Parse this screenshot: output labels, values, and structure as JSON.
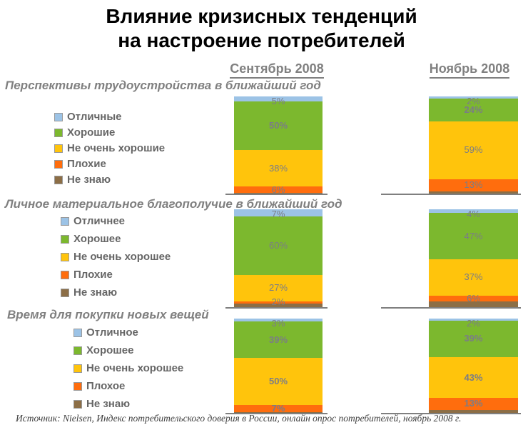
{
  "title": {
    "line1": "Влияние кризисных тенденций",
    "line2": "на настроение потребителей"
  },
  "source": "Источник: Nielsen, Индекс потребительского доверия в России, онлайн опрос потребителей, ноябрь 2008 г.",
  "colors": {
    "segments": [
      "#9CC3E6",
      "#7CB82E",
      "#FFC40C",
      "#FF6D0D",
      "#8C6E46"
    ],
    "header_gray": "#808080",
    "legend_text": "#666666",
    "percent_label": "#7B7D86",
    "axis": "#7F7F7F",
    "title_black": "#000000"
  },
  "chart_data": {
    "type": "bar",
    "subtype": "stacked-100-percent",
    "columns": [
      "Сентябрь 2008",
      "Ноябрь 2008"
    ],
    "legend_position": "left",
    "grid": false,
    "sections": [
      {
        "title": "Перспективы трудоустройства в ближайший год",
        "legend": [
          "Отличные",
          "Хорошие",
          "Не очень хорошие",
          "Плохие",
          "Не знаю"
        ],
        "bars": [
          {
            "column": "Сентябрь 2008",
            "values": [
              5,
              50,
              38,
              6,
              1
            ],
            "labels": [
              "5%",
              "50%",
              "38%",
              "6%",
              ""
            ],
            "bold": [
              false,
              true,
              false,
              false,
              false
            ]
          },
          {
            "column": "Ноябрь 2008",
            "values": [
              2,
              24,
              59,
              13,
              2
            ],
            "labels": [
              "2%",
              "24%",
              "59%",
              "13%",
              ""
            ],
            "bold": [
              false,
              true,
              false,
              false,
              false
            ]
          }
        ]
      },
      {
        "title": "Личное материальное благополучие в ближайший год",
        "legend": [
          "Отличнее",
          "Хорошее",
          "Не очень хорошее",
          "Плохие",
          "Не знаю"
        ],
        "bars": [
          {
            "column": "Сентябрь 2008",
            "values": [
              7,
              60,
              27,
              2,
              4
            ],
            "labels": [
              "7%",
              "60%",
              "27%",
              "2%",
              ""
            ],
            "bold": [
              false,
              false,
              false,
              false,
              false
            ]
          },
          {
            "column": "Ноябрь 2008",
            "values": [
              4,
              47,
              37,
              6,
              6
            ],
            "labels": [
              "4%",
              "47%",
              "37%",
              "6%",
              ""
            ],
            "bold": [
              false,
              false,
              false,
              false,
              false
            ]
          }
        ]
      },
      {
        "title": "Время для покупки новых вещей",
        "legend": [
          "Отличное",
          "Хорошее",
          "Не очень хорошее",
          "Плохое",
          "Не знаю"
        ],
        "bars": [
          {
            "column": "Сентябрь 2008",
            "values": [
              3,
              39,
              50,
              7,
              1
            ],
            "labels": [
              "3%",
              "39%",
              "50%",
              "7%",
              ""
            ],
            "bold": [
              false,
              true,
              true,
              true,
              false
            ]
          },
          {
            "column": "Ноябрь 2008",
            "values": [
              2,
              39,
              43,
              13,
              3
            ],
            "labels": [
              "2%",
              "39%",
              "43%",
              "13%",
              ""
            ],
            "bold": [
              false,
              true,
              true,
              true,
              false
            ]
          }
        ]
      }
    ]
  }
}
